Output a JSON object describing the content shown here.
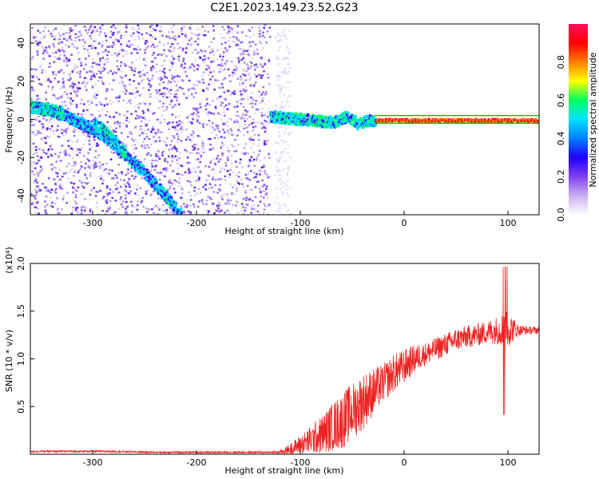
{
  "figure_title": "C2E1.2023.149.23.52.G23",
  "colors": {
    "snr_line": "#ee2222",
    "pixel_ramp": [
      "#d7c4f5",
      "#b48cf0",
      "#8a55ec",
      "#6a22ea",
      "#4a10e0"
    ],
    "ridge_colors": [
      "#00d8ff",
      "#00ff66",
      "#ff0000"
    ]
  },
  "chart_data": [
    {
      "type": "heatmap",
      "title": "",
      "xlabel": "Height of straight line (km)",
      "ylabel": "Frequency (Hz)",
      "xlim": [
        -360,
        130
      ],
      "ylim": [
        -50,
        50
      ],
      "xticks": [
        -300,
        -200,
        -100,
        0,
        100
      ],
      "yticks": [
        -40,
        -20,
        0,
        20,
        40
      ],
      "colorbar": {
        "label": "Normalized spectral amplitude",
        "range": [
          0,
          1
        ],
        "ticks": [
          0.0,
          0.2,
          0.4,
          0.6,
          0.8
        ],
        "colormap": [
          "#ffffff",
          "#c8b0f0",
          "#8040f0",
          "#2000ff",
          "#0080ff",
          "#00e0ff",
          "#00ff60",
          "#ffff00",
          "#ff8000",
          "#ff0000",
          "#ff1060"
        ]
      },
      "features": [
        {
          "kind": "broadband_noise",
          "x_range": [
            -360,
            -130
          ],
          "y_range": [
            -50,
            50
          ],
          "amplitude": 0.25
        },
        {
          "kind": "ridge",
          "x": [
            -350,
            -330,
            -310,
            -290,
            -270,
            -250,
            -230,
            -215
          ],
          "y": [
            6,
            3,
            -2,
            -8,
            -18,
            -28,
            -40,
            -50
          ],
          "amplitude": 0.45
        },
        {
          "kind": "ridge",
          "x": [
            -360,
            -345,
            -330
          ],
          "y": [
            7,
            6,
            4
          ],
          "amplitude": 0.5
        },
        {
          "kind": "ridge",
          "x": [
            -300,
            -290,
            -280,
            -270
          ],
          "y": [
            -2,
            -5,
            -11,
            -17
          ],
          "amplitude": 0.5
        },
        {
          "kind": "ridge",
          "x": [
            -130,
            -110,
            -90,
            -70,
            -55,
            -45,
            -35,
            -28
          ],
          "y": [
            2,
            1,
            0,
            -1,
            2,
            -2,
            0,
            -1
          ],
          "amplitude": 0.5
        },
        {
          "kind": "ridge",
          "x": [
            -28,
            0,
            50,
            100,
            130
          ],
          "y": [
            0,
            0,
            0,
            0,
            0
          ],
          "amplitude": 0.95
        }
      ]
    },
    {
      "type": "line",
      "title": "",
      "xlabel": "Height of straight line (km)",
      "ylabel": "SNR (10 * v/v)",
      "y_multiplier_label": "(x10⁴)",
      "xlim": [
        -360,
        130
      ],
      "ylim": [
        0,
        2.0
      ],
      "xticks": [
        -300,
        -200,
        -100,
        0,
        100
      ],
      "yticks": [
        0.5,
        1.0,
        1.5,
        2.0
      ],
      "series": [
        {
          "x": [
            -360,
            -320,
            -280,
            -240,
            -200,
            -160,
            -130,
            -120,
            -110,
            -100,
            -90,
            -80,
            -70,
            -60,
            -50,
            -40,
            -30,
            -20,
            -10,
            0,
            10,
            20,
            30,
            40,
            50,
            60,
            70,
            80,
            90,
            100,
            110,
            120,
            130
          ],
          "values": [
            0.03,
            0.03,
            0.03,
            0.02,
            0.02,
            0.02,
            0.02,
            0.02,
            0.05,
            0.1,
            0.15,
            0.2,
            0.28,
            0.35,
            0.45,
            0.55,
            0.65,
            0.75,
            0.85,
            0.92,
            1.0,
            1.05,
            1.1,
            1.15,
            1.2,
            1.23,
            1.25,
            1.28,
            1.3,
            1.32,
            1.3,
            1.3,
            1.3
          ],
          "noise_amplitude": [
            0.01,
            0.01,
            0.01,
            0.01,
            0.01,
            0.01,
            0.01,
            0.02,
            0.06,
            0.1,
            0.15,
            0.2,
            0.25,
            0.3,
            0.3,
            0.3,
            0.25,
            0.2,
            0.2,
            0.18,
            0.15,
            0.12,
            0.12,
            0.12,
            0.12,
            0.12,
            0.12,
            0.12,
            0.15,
            0.2,
            0.06,
            0.04,
            0.04
          ]
        }
      ]
    }
  ]
}
